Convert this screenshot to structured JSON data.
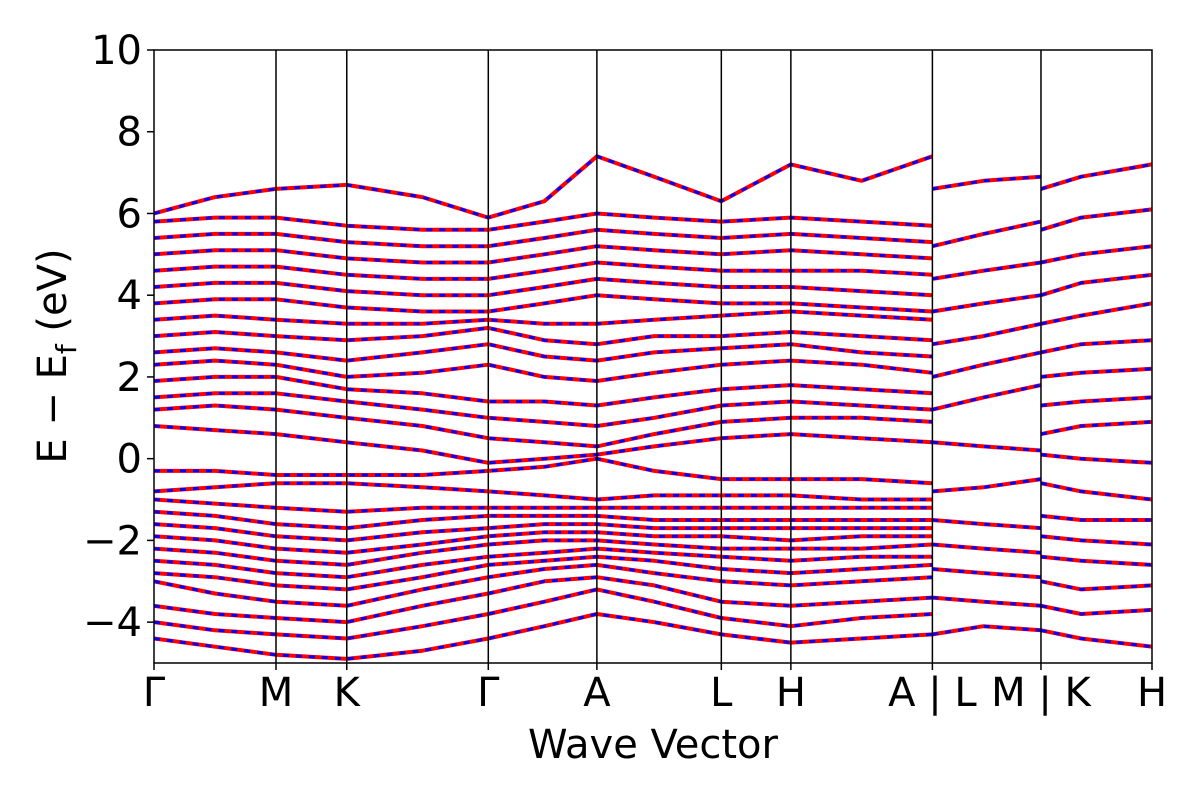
{
  "chart_data": {
    "type": "line",
    "title": "",
    "xlabel": "Wave Vector",
    "ylabel_main": "E − E",
    "ylabel_sub": "f",
    "ylabel_unit": " (eV)",
    "ylim": [
      -5,
      10
    ],
    "yticks": [
      -4,
      -2,
      0,
      2,
      4,
      6,
      8,
      10
    ],
    "xlim": [
      0,
      8.18
    ],
    "grid": false,
    "legend": "none",
    "kpath_positions": [
      0,
      1.0,
      1.58,
      2.74,
      3.63,
      4.65,
      5.22,
      6.38,
      7.27,
      8.18
    ],
    "kpath_labels": [
      "Γ",
      "M",
      "K",
      "Γ",
      "A",
      "L",
      "H",
      "A | L",
      "M | K",
      "H"
    ],
    "series": [
      {
        "color": "#ff0000",
        "style": "solid",
        "linewidth": 4
      },
      {
        "color": "#0000ff",
        "style": "dashed",
        "linewidth": 3
      }
    ],
    "bands": [
      {
        "x": [
          0,
          0.5,
          1.0,
          1.58,
          2.2,
          2.74,
          3.2,
          3.63,
          4.1,
          4.65,
          5.22,
          5.8,
          6.38
        ],
        "y": [
          -4.4,
          -4.6,
          -4.8,
          -4.9,
          -4.7,
          -4.4,
          -4.1,
          -3.8,
          -4.0,
          -4.3,
          -4.5,
          -4.4,
          -4.3
        ]
      },
      {
        "x": [
          0,
          0.5,
          1.0,
          1.58,
          2.2,
          2.74,
          3.2,
          3.63,
          4.1,
          4.65,
          5.22,
          5.8,
          6.38
        ],
        "y": [
          -4.0,
          -4.2,
          -4.3,
          -4.4,
          -4.1,
          -3.8,
          -3.5,
          -3.2,
          -3.5,
          -3.9,
          -4.1,
          -3.9,
          -3.8
        ]
      },
      {
        "x": [
          0,
          0.5,
          1.0,
          1.58,
          2.2,
          2.74,
          3.2,
          3.63,
          4.1,
          4.65,
          5.22,
          5.8,
          6.38
        ],
        "y": [
          -3.6,
          -3.8,
          -3.9,
          -4.0,
          -3.6,
          -3.3,
          -3.0,
          -2.9,
          -3.1,
          -3.5,
          -3.6,
          -3.5,
          -3.4
        ]
      },
      {
        "x": [
          0,
          0.5,
          1.0,
          1.58,
          2.2,
          2.74,
          3.2,
          3.63,
          4.1,
          4.65,
          5.22,
          5.8,
          6.38
        ],
        "y": [
          -3.0,
          -3.3,
          -3.5,
          -3.6,
          -3.2,
          -2.9,
          -2.7,
          -2.6,
          -2.8,
          -3.0,
          -3.1,
          -3.0,
          -2.9
        ]
      },
      {
        "x": [
          0,
          0.5,
          1.0,
          1.58,
          2.2,
          2.74,
          3.2,
          3.63,
          4.1,
          4.65,
          5.22,
          5.8,
          6.38
        ],
        "y": [
          -2.8,
          -2.9,
          -3.1,
          -3.2,
          -2.9,
          -2.6,
          -2.5,
          -2.4,
          -2.5,
          -2.7,
          -2.8,
          -2.7,
          -2.6
        ]
      },
      {
        "x": [
          0,
          0.5,
          1.0,
          1.58,
          2.2,
          2.74,
          3.2,
          3.63,
          4.1,
          4.65,
          5.22,
          5.8,
          6.38
        ],
        "y": [
          -2.5,
          -2.6,
          -2.8,
          -2.9,
          -2.6,
          -2.4,
          -2.3,
          -2.2,
          -2.3,
          -2.4,
          -2.5,
          -2.4,
          -2.4
        ]
      },
      {
        "x": [
          0,
          0.5,
          1.0,
          1.58,
          2.2,
          2.74,
          3.2,
          3.63,
          4.1,
          4.65,
          5.22,
          5.8,
          6.38
        ],
        "y": [
          -2.2,
          -2.3,
          -2.5,
          -2.6,
          -2.3,
          -2.1,
          -2.0,
          -2.0,
          -2.1,
          -2.2,
          -2.2,
          -2.2,
          -2.1
        ]
      },
      {
        "x": [
          0,
          0.5,
          1.0,
          1.58,
          2.2,
          2.74,
          3.2,
          3.63,
          4.1,
          4.65,
          5.22,
          5.8,
          6.38
        ],
        "y": [
          -1.9,
          -2.0,
          -2.2,
          -2.3,
          -2.1,
          -1.9,
          -1.8,
          -1.8,
          -1.9,
          -1.9,
          -2.0,
          -1.9,
          -1.9
        ]
      },
      {
        "x": [
          0,
          0.5,
          1.0,
          1.58,
          2.2,
          2.74,
          3.2,
          3.63,
          4.1,
          4.65,
          5.22,
          5.8,
          6.38
        ],
        "y": [
          -1.6,
          -1.7,
          -1.9,
          -2.0,
          -1.8,
          -1.7,
          -1.6,
          -1.6,
          -1.7,
          -1.7,
          -1.7,
          -1.7,
          -1.7
        ]
      },
      {
        "x": [
          0,
          0.5,
          1.0,
          1.58,
          2.2,
          2.74,
          3.2,
          3.63,
          4.1,
          4.65,
          5.22,
          5.8,
          6.38
        ],
        "y": [
          -1.3,
          -1.4,
          -1.6,
          -1.7,
          -1.5,
          -1.4,
          -1.4,
          -1.4,
          -1.5,
          -1.5,
          -1.5,
          -1.5,
          -1.5
        ]
      },
      {
        "x": [
          0,
          0.5,
          1.0,
          1.58,
          2.2,
          2.74,
          3.2,
          3.63,
          4.1,
          4.65,
          5.22,
          5.8,
          6.38
        ],
        "y": [
          -1.0,
          -1.1,
          -1.2,
          -1.3,
          -1.2,
          -1.2,
          -1.2,
          -1.2,
          -1.2,
          -1.2,
          -1.2,
          -1.2,
          -1.2
        ]
      },
      {
        "x": [
          0,
          0.5,
          1.0,
          1.58,
          2.2,
          2.74,
          3.2,
          3.63,
          4.1,
          4.65,
          5.22,
          5.8,
          6.38
        ],
        "y": [
          -0.8,
          -0.7,
          -0.6,
          -0.6,
          -0.7,
          -0.8,
          -0.9,
          -1.0,
          -0.9,
          -0.9,
          -0.9,
          -1.0,
          -1.0
        ]
      },
      {
        "x": [
          0,
          0.5,
          1.0,
          1.58,
          2.2,
          2.74,
          3.2,
          3.63,
          4.1,
          4.65,
          5.22,
          5.8,
          6.38
        ],
        "y": [
          -0.3,
          -0.3,
          -0.4,
          -0.4,
          -0.4,
          -0.3,
          -0.2,
          0.0,
          -0.3,
          -0.5,
          -0.5,
          -0.5,
          -0.6
        ]
      },
      {
        "x": [
          0,
          0.5,
          1.0,
          1.58,
          2.2,
          2.74,
          3.2,
          3.63,
          4.1,
          4.65,
          5.22,
          5.8,
          6.38
        ],
        "y": [
          0.8,
          0.7,
          0.6,
          0.4,
          0.2,
          -0.1,
          0.0,
          0.1,
          0.3,
          0.5,
          0.6,
          0.5,
          0.4
        ]
      },
      {
        "x": [
          0,
          0.5,
          1.0,
          1.58,
          2.2,
          2.74,
          3.2,
          3.63,
          4.1,
          4.65,
          5.22,
          5.8,
          6.38
        ],
        "y": [
          1.2,
          1.3,
          1.2,
          1.0,
          0.8,
          0.5,
          0.4,
          0.3,
          0.6,
          0.9,
          1.0,
          1.0,
          0.9
        ]
      },
      {
        "x": [
          0,
          0.5,
          1.0,
          1.58,
          2.2,
          2.74,
          3.2,
          3.63,
          4.1,
          4.65,
          5.22,
          5.8,
          6.38
        ],
        "y": [
          1.5,
          1.6,
          1.6,
          1.4,
          1.2,
          1.0,
          0.9,
          0.8,
          1.0,
          1.3,
          1.4,
          1.3,
          1.2
        ]
      },
      {
        "x": [
          0,
          0.5,
          1.0,
          1.58,
          2.2,
          2.74,
          3.2,
          3.63,
          4.1,
          4.65,
          5.22,
          5.8,
          6.38
        ],
        "y": [
          1.9,
          2.0,
          2.0,
          1.7,
          1.6,
          1.4,
          1.4,
          1.3,
          1.5,
          1.7,
          1.8,
          1.7,
          1.6
        ]
      },
      {
        "x": [
          0,
          0.5,
          1.0,
          1.58,
          2.2,
          2.74,
          3.2,
          3.63,
          4.1,
          4.65,
          5.22,
          5.8,
          6.38
        ],
        "y": [
          2.3,
          2.4,
          2.3,
          2.0,
          2.1,
          2.3,
          2.0,
          1.9,
          2.1,
          2.3,
          2.4,
          2.3,
          2.1
        ]
      },
      {
        "x": [
          0,
          0.5,
          1.0,
          1.58,
          2.2,
          2.74,
          3.2,
          3.63,
          4.1,
          4.65,
          5.22,
          5.8,
          6.38
        ],
        "y": [
          2.6,
          2.7,
          2.6,
          2.4,
          2.6,
          2.8,
          2.5,
          2.4,
          2.6,
          2.7,
          2.8,
          2.6,
          2.5
        ]
      },
      {
        "x": [
          0,
          0.5,
          1.0,
          1.58,
          2.2,
          2.74,
          3.2,
          3.63,
          4.1,
          4.65,
          5.22,
          5.8,
          6.38
        ],
        "y": [
          3.0,
          3.1,
          3.0,
          2.9,
          3.0,
          3.2,
          2.9,
          2.8,
          3.0,
          3.0,
          3.1,
          3.0,
          2.9
        ]
      },
      {
        "x": [
          0,
          0.5,
          1.0,
          1.58,
          2.2,
          2.74,
          3.2,
          3.63,
          4.1,
          4.65,
          5.22,
          5.8,
          6.38
        ],
        "y": [
          3.4,
          3.5,
          3.4,
          3.3,
          3.3,
          3.4,
          3.3,
          3.3,
          3.4,
          3.5,
          3.6,
          3.5,
          3.4
        ]
      },
      {
        "x": [
          0,
          0.5,
          1.0,
          1.58,
          2.2,
          2.74,
          3.2,
          3.63,
          4.1,
          4.65,
          5.22,
          5.8,
          6.38
        ],
        "y": [
          3.8,
          3.9,
          3.9,
          3.7,
          3.6,
          3.6,
          3.8,
          4.0,
          3.9,
          3.8,
          3.8,
          3.7,
          3.6
        ]
      },
      {
        "x": [
          0,
          0.5,
          1.0,
          1.58,
          2.2,
          2.74,
          3.2,
          3.63,
          4.1,
          4.65,
          5.22,
          5.8,
          6.38
        ],
        "y": [
          4.2,
          4.3,
          4.3,
          4.1,
          4.0,
          4.0,
          4.2,
          4.4,
          4.3,
          4.2,
          4.2,
          4.1,
          4.0
        ]
      },
      {
        "x": [
          0,
          0.5,
          1.0,
          1.58,
          2.2,
          2.74,
          3.2,
          3.63,
          4.1,
          4.65,
          5.22,
          5.8,
          6.38
        ],
        "y": [
          4.6,
          4.7,
          4.7,
          4.5,
          4.4,
          4.4,
          4.6,
          4.8,
          4.7,
          4.6,
          4.6,
          4.6,
          4.5
        ]
      },
      {
        "x": [
          0,
          0.5,
          1.0,
          1.58,
          2.2,
          2.74,
          3.2,
          3.63,
          4.1,
          4.65,
          5.22,
          5.8,
          6.38
        ],
        "y": [
          5.0,
          5.1,
          5.1,
          4.9,
          4.8,
          4.8,
          5.0,
          5.2,
          5.1,
          5.0,
          5.1,
          5.0,
          4.9
        ]
      },
      {
        "x": [
          0,
          0.5,
          1.0,
          1.58,
          2.2,
          2.74,
          3.2,
          3.63,
          4.1,
          4.65,
          5.22,
          5.8,
          6.38
        ],
        "y": [
          5.4,
          5.5,
          5.5,
          5.3,
          5.2,
          5.2,
          5.4,
          5.6,
          5.5,
          5.4,
          5.5,
          5.4,
          5.3
        ]
      },
      {
        "x": [
          0,
          0.5,
          1.0,
          1.58,
          2.2,
          2.74,
          3.2,
          3.63,
          4.1,
          4.65,
          5.22,
          5.8,
          6.38
        ],
        "y": [
          5.8,
          5.9,
          5.9,
          5.7,
          5.6,
          5.6,
          5.8,
          6.0,
          5.9,
          5.8,
          5.9,
          5.8,
          5.7
        ]
      },
      {
        "x": [
          0,
          0.5,
          1.0,
          1.58,
          2.2,
          2.74,
          3.2,
          3.63,
          4.1,
          4.65,
          5.22,
          5.8,
          6.38
        ],
        "y": [
          6.0,
          6.4,
          6.6,
          6.7,
          6.4,
          5.9,
          6.3,
          7.4,
          6.9,
          6.3,
          7.2,
          6.8,
          7.4
        ]
      },
      {
        "x": [
          7.27,
          7.6,
          8.18
        ],
        "y": [
          -4.2,
          -4.4,
          -4.6
        ]
      },
      {
        "x": [
          7.27,
          7.6,
          8.18
        ],
        "y": [
          -3.6,
          -3.8,
          -3.7
        ]
      },
      {
        "x": [
          7.27,
          7.6,
          8.18
        ],
        "y": [
          -3.0,
          -3.2,
          -3.1
        ]
      },
      {
        "x": [
          7.27,
          7.6,
          8.18
        ],
        "y": [
          -2.4,
          -2.5,
          -2.6
        ]
      },
      {
        "x": [
          7.27,
          7.6,
          8.18
        ],
        "y": [
          -1.9,
          -2.0,
          -2.1
        ]
      },
      {
        "x": [
          7.27,
          7.6,
          8.18
        ],
        "y": [
          -1.4,
          -1.5,
          -1.5
        ]
      },
      {
        "x": [
          7.27,
          7.6,
          8.18
        ],
        "y": [
          -0.6,
          -0.8,
          -1.0
        ]
      },
      {
        "x": [
          7.27,
          7.6,
          8.18
        ],
        "y": [
          0.1,
          0.0,
          -0.1
        ]
      },
      {
        "x": [
          7.27,
          7.6,
          8.18
        ],
        "y": [
          0.6,
          0.8,
          0.9
        ]
      },
      {
        "x": [
          7.27,
          7.6,
          8.18
        ],
        "y": [
          1.3,
          1.4,
          1.5
        ]
      },
      {
        "x": [
          7.27,
          7.6,
          8.18
        ],
        "y": [
          2.0,
          2.1,
          2.2
        ]
      },
      {
        "x": [
          7.27,
          7.6,
          8.18
        ],
        "y": [
          2.6,
          2.8,
          2.9
        ]
      },
      {
        "x": [
          7.27,
          7.6,
          8.18
        ],
        "y": [
          3.3,
          3.5,
          3.8
        ]
      },
      {
        "x": [
          7.27,
          7.6,
          8.18
        ],
        "y": [
          4.0,
          4.3,
          4.5
        ]
      },
      {
        "x": [
          7.27,
          7.6,
          8.18
        ],
        "y": [
          4.8,
          5.0,
          5.2
        ]
      },
      {
        "x": [
          7.27,
          7.6,
          8.18
        ],
        "y": [
          5.6,
          5.9,
          6.1
        ]
      },
      {
        "x": [
          7.27,
          7.6,
          8.18
        ],
        "y": [
          6.6,
          6.9,
          7.2
        ]
      },
      {
        "x": [
          6.38,
          6.8,
          7.27
        ],
        "y": [
          -4.3,
          -4.1,
          -4.2
        ]
      },
      {
        "x": [
          6.38,
          6.8,
          7.27
        ],
        "y": [
          -3.4,
          -3.5,
          -3.6
        ]
      },
      {
        "x": [
          6.38,
          6.8,
          7.27
        ],
        "y": [
          -2.7,
          -2.8,
          -2.9
        ]
      },
      {
        "x": [
          6.38,
          6.8,
          7.27
        ],
        "y": [
          -2.1,
          -2.2,
          -2.3
        ]
      },
      {
        "x": [
          6.38,
          6.8,
          7.27
        ],
        "y": [
          -1.5,
          -1.6,
          -1.7
        ]
      },
      {
        "x": [
          6.38,
          6.8,
          7.27
        ],
        "y": [
          -0.8,
          -0.7,
          -0.5
        ]
      },
      {
        "x": [
          6.38,
          6.8,
          7.27
        ],
        "y": [
          0.4,
          0.3,
          0.2
        ]
      },
      {
        "x": [
          6.38,
          6.8,
          7.27
        ],
        "y": [
          1.2,
          1.5,
          1.8
        ]
      },
      {
        "x": [
          6.38,
          6.8,
          7.27
        ],
        "y": [
          2.0,
          2.3,
          2.6
        ]
      },
      {
        "x": [
          6.38,
          6.8,
          7.27
        ],
        "y": [
          2.8,
          3.0,
          3.3
        ]
      },
      {
        "x": [
          6.38,
          6.8,
          7.27
        ],
        "y": [
          3.6,
          3.8,
          4.0
        ]
      },
      {
        "x": [
          6.38,
          6.8,
          7.27
        ],
        "y": [
          4.4,
          4.6,
          4.8
        ]
      },
      {
        "x": [
          6.38,
          6.8,
          7.27
        ],
        "y": [
          5.2,
          5.5,
          5.8
        ]
      },
      {
        "x": [
          6.38,
          6.8,
          7.27
        ],
        "y": [
          6.6,
          6.8,
          6.9
        ]
      }
    ]
  }
}
